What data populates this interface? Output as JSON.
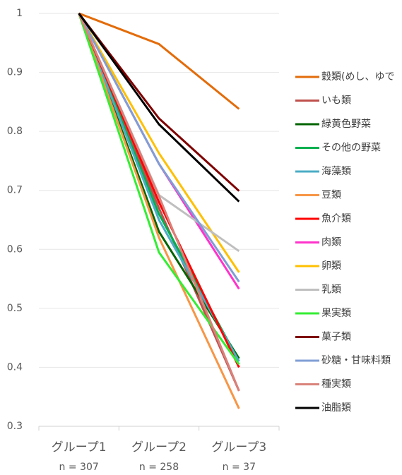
{
  "chart_data": {
    "type": "line",
    "categories": [
      "グループ1",
      "グループ2",
      "グループ3"
    ],
    "category_notes": [
      "n = 307",
      "n = 258",
      "n = 37"
    ],
    "ylim": [
      0.3,
      1
    ],
    "yticks": [
      0.3,
      0.4,
      0.5,
      0.6,
      0.7,
      0.8,
      0.9,
      1
    ],
    "grid": true,
    "legend": "right",
    "series": [
      {
        "name": "穀類(めし、ゆで",
        "color": "#e36c0a",
        "values": [
          1,
          0.948,
          0.838
        ]
      },
      {
        "name": "いも類",
        "color": "#c0504d",
        "values": [
          1,
          0.67,
          0.36
        ]
      },
      {
        "name": "緑黄色野菜",
        "color": "#006400",
        "values": [
          1,
          0.63,
          0.415
        ]
      },
      {
        "name": "その他の野菜",
        "color": "#00b050",
        "values": [
          1,
          0.66,
          0.41
        ]
      },
      {
        "name": "海藻類",
        "color": "#4bacc6",
        "values": [
          1,
          0.65,
          0.41
        ]
      },
      {
        "name": "豆類",
        "color": "#f79646",
        "values": [
          1,
          0.62,
          0.33
        ]
      },
      {
        "name": "魚介類",
        "color": "#ff0000",
        "values": [
          1,
          0.68,
          0.4
        ]
      },
      {
        "name": "肉類",
        "color": "#ff33cc",
        "values": [
          1,
          0.745,
          0.533
        ]
      },
      {
        "name": "卵類",
        "color": "#ffc000",
        "values": [
          1,
          0.763,
          0.561
        ]
      },
      {
        "name": "乳類",
        "color": "#bfbfbf",
        "values": [
          1,
          0.692,
          0.597
        ]
      },
      {
        "name": "果実類",
        "color": "#33ee33",
        "values": [
          1,
          0.595,
          0.405
        ]
      },
      {
        "name": "菓子類",
        "color": "#7f0000",
        "values": [
          1,
          0.822,
          0.699
        ]
      },
      {
        "name": "砂糖・甘味料類",
        "color": "#7f9fd4",
        "values": [
          1,
          0.745,
          0.545
        ]
      },
      {
        "name": "種実類",
        "color": "#d9827a",
        "values": [
          1,
          0.69,
          0.36
        ]
      },
      {
        "name": "油脂類",
        "color": "#000000",
        "values": [
          1,
          0.812,
          0.681
        ]
      }
    ]
  }
}
